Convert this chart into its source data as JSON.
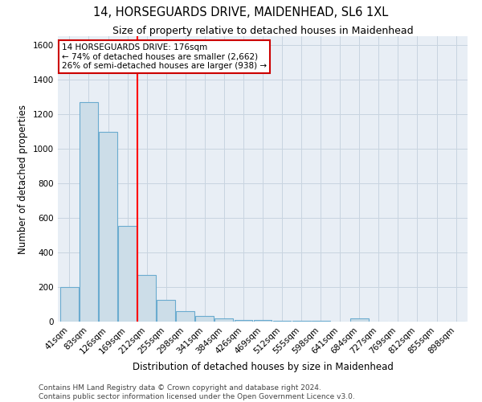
{
  "title": "14, HORSEGUARDS DRIVE, MAIDENHEAD, SL6 1XL",
  "subtitle": "Size of property relative to detached houses in Maidenhead",
  "xlabel": "Distribution of detached houses by size in Maidenhead",
  "ylabel": "Number of detached properties",
  "footer_line1": "Contains HM Land Registry data © Crown copyright and database right 2024.",
  "footer_line2": "Contains public sector information licensed under the Open Government Licence v3.0.",
  "bar_labels": [
    "41sqm",
    "83sqm",
    "126sqm",
    "169sqm",
    "212sqm",
    "255sqm",
    "298sqm",
    "341sqm",
    "384sqm",
    "426sqm",
    "469sqm",
    "512sqm",
    "555sqm",
    "598sqm",
    "641sqm",
    "684sqm",
    "727sqm",
    "769sqm",
    "812sqm",
    "855sqm",
    "898sqm"
  ],
  "bar_values": [
    200,
    1270,
    1095,
    555,
    270,
    125,
    62,
    32,
    20,
    10,
    8,
    6,
    5,
    4,
    0,
    20,
    0,
    0,
    0,
    0,
    0
  ],
  "bar_color": "#ccdde8",
  "bar_edge_color": "#6aabcf",
  "red_line_x": 3.5,
  "annotation_line1": "14 HORSEGUARDS DRIVE: 176sqm",
  "annotation_line2": "← 74% of detached houses are smaller (2,662)",
  "annotation_line3": "26% of semi-detached houses are larger (938) →",
  "ylim": [
    0,
    1650
  ],
  "yticks": [
    0,
    200,
    400,
    600,
    800,
    1000,
    1200,
    1400,
    1600
  ],
  "grid_color": "#c8d4e0",
  "bg_color": "#e8eef5",
  "annotation_box_facecolor": "#ffffff",
  "annotation_box_edgecolor": "#cc0000",
  "title_fontsize": 10.5,
  "subtitle_fontsize": 9,
  "axis_label_fontsize": 8.5,
  "tick_fontsize": 7.5,
  "annotation_fontsize": 7.5,
  "footer_fontsize": 6.5
}
